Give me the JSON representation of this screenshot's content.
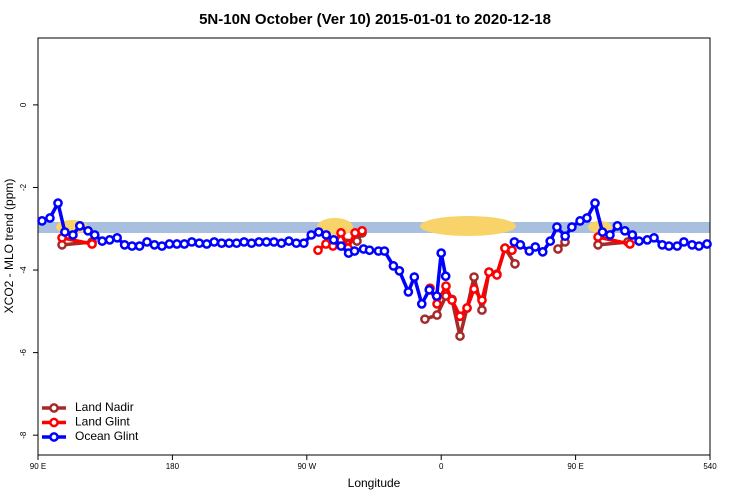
{
  "chart_data": {
    "type": "line",
    "title": "5N-10N October (Ver 10)   2015-01-01 to 2020-12-18",
    "x_label": "Longitude",
    "y_label": "XCO2 - MLO trend (ppm)",
    "xlim": [
      90,
      540
    ],
    "ylim": [
      -8.48,
      1.62
    ],
    "xticks": [
      {
        "value": 90,
        "label": "90 E"
      },
      180,
      {
        "value": 270,
        "label": "90 W"
      },
      {
        "value": 360,
        "label": "0"
      },
      {
        "value": 450,
        "label": "90 E"
      },
      540
    ],
    "yticks": [
      -8,
      -6,
      -4,
      -2,
      0
    ],
    "legend": "bottom-left",
    "series": [
      {
        "name": "Land Nadir",
        "color": "#a52a2a",
        "x": [
          106.1,
          126.2,
          null,
          285.5,
          292.9,
          303.6,
          307,
          null,
          349.1,
          357.2,
          363.2,
          367.2,
          372.6,
          377.3,
          382,
          387.3,
          392,
          397.3,
          402.7,
          409.4,
          null,
          438.2,
          442.9,
          null,
          465,
          485
        ],
        "values": [
          -3.39,
          -3.32,
          null,
          -3.32,
          -3.27,
          -3.3,
          -3.1,
          null,
          -5.19,
          -5.09,
          -4.63,
          -4.71,
          -5.6,
          -4.92,
          -4.17,
          -4.97,
          -4.05,
          -4.1,
          -3.47,
          -3.85,
          null,
          -3.49,
          -3.32,
          null,
          -3.39,
          -3.32
        ]
      },
      {
        "name": "Land Glint",
        "color": "#ff0000",
        "x": [
          106.1,
          126.2,
          null,
          277.5,
          282.8,
          287.5,
          292.9,
          297.6,
          302.3,
          307,
          null,
          352.5,
          357.2,
          363.2,
          367.2,
          372.6,
          377.3,
          382,
          387.3,
          392,
          397.3,
          402.7,
          407.4,
          null,
          465,
          486.4
        ],
        "values": [
          -3.22,
          -3.37,
          null,
          -3.52,
          -3.37,
          -3.42,
          -3.1,
          -3.47,
          -3.1,
          -3.05,
          null,
          -4.44,
          -4.82,
          -4.39,
          -4.73,
          -5.12,
          -4.92,
          -4.46,
          -4.73,
          -4.05,
          -4.12,
          -3.47,
          -3.52,
          null,
          -3.2,
          -3.37
        ]
      },
      {
        "name": "Ocean Glint",
        "color": "#0000ff",
        "x": [
          92.7,
          98,
          103.4,
          108,
          113.4,
          118,
          123.5,
          128,
          133,
          138,
          143,
          148,
          153,
          158,
          163,
          168,
          173,
          178,
          183,
          188,
          193,
          198,
          203,
          208,
          213,
          218,
          223,
          228,
          233,
          238,
          243,
          248,
          253,
          258,
          263,
          268,
          273,
          278,
          283,
          288,
          293,
          298,
          302,
          308,
          312,
          318,
          322,
          328,
          332,
          338,
          342,
          347,
          352,
          357,
          360,
          363,
          null,
          409,
          413,
          419,
          423,
          428,
          433,
          437.5,
          443,
          447.5,
          453,
          457.6,
          463,
          468,
          473,
          478,
          483,
          488,
          492.5,
          498,
          502.5,
          508,
          512.5,
          518,
          522.5,
          528,
          532.6,
          538
        ],
        "values": [
          -2.81,
          -2.74,
          -2.38,
          -3.08,
          -3.15,
          -2.93,
          -3.05,
          -3.15,
          -3.3,
          -3.27,
          -3.22,
          -3.39,
          -3.42,
          -3.42,
          -3.32,
          -3.39,
          -3.42,
          -3.37,
          -3.37,
          -3.37,
          -3.32,
          -3.35,
          -3.37,
          -3.32,
          -3.35,
          -3.35,
          -3.35,
          -3.32,
          -3.35,
          -3.32,
          -3.32,
          -3.32,
          -3.35,
          -3.3,
          -3.35,
          -3.35,
          -3.15,
          -3.08,
          -3.15,
          -3.27,
          -3.42,
          -3.59,
          -3.54,
          -3.49,
          -3.52,
          -3.54,
          -3.54,
          -3.9,
          -4.02,
          -4.53,
          -4.17,
          -4.82,
          -4.48,
          -4.63,
          -3.59,
          -4.15,
          null,
          -3.32,
          -3.39,
          -3.54,
          -3.44,
          -3.56,
          -3.3,
          -2.96,
          -3.18,
          -2.96,
          -2.81,
          -2.74,
          -2.38,
          -3.08,
          -3.15,
          -2.93,
          -3.05,
          -3.15,
          -3.3,
          -3.27,
          -3.22,
          -3.39,
          -3.42,
          -3.42,
          -3.32,
          -3.39,
          -3.42,
          -3.37
        ]
      }
    ]
  }
}
